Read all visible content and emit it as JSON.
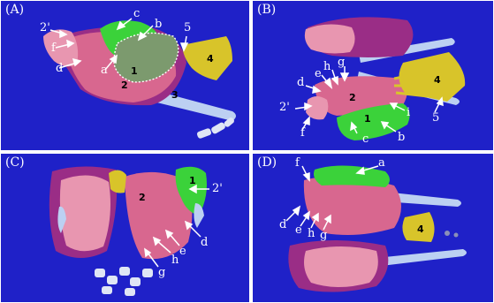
{
  "panels": [
    {
      "id": "A",
      "label": "(A)",
      "letters": [
        "2'",
        "f",
        "d",
        "a",
        "c",
        "b",
        "5"
      ],
      "numbers": [
        "1",
        "2",
        "3",
        "4"
      ]
    },
    {
      "id": "B",
      "label": "(B)",
      "letters": [
        "d",
        "e",
        "h",
        "g",
        "2'",
        "f",
        "c",
        "b",
        "i",
        "5"
      ],
      "numbers": [
        "1",
        "2",
        "4"
      ]
    },
    {
      "id": "C",
      "label": "(C)",
      "letters": [
        "2'",
        "d",
        "e",
        "h",
        "g"
      ],
      "numbers": [
        "1",
        "2"
      ]
    },
    {
      "id": "D",
      "label": "(D)",
      "letters": [
        "f",
        "a",
        "d",
        "e",
        "h",
        "g"
      ],
      "numbers": [
        "4"
      ]
    }
  ],
  "colors": {
    "background": "#1f21c8",
    "pink_tissue": "#d8678f",
    "light_pink": "#e896b0",
    "purple_tissue": "#9a2d86",
    "green_tissue": "#3bd23a",
    "yellow_tissue": "#d8c42a",
    "blue_white": "#bcd0f2",
    "arrow": "#ffffff"
  }
}
